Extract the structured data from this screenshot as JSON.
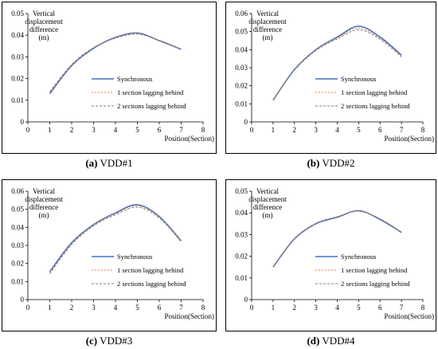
{
  "chart_data": [
    {
      "type": "line",
      "caption_letter": "(a)",
      "caption_name": "VDD#1",
      "ylabel_lines": [
        "Vertical",
        "displacement",
        "difference",
        "(m)"
      ],
      "xlabel": "Position(Section)",
      "xlim": [
        0,
        8
      ],
      "ylim": [
        0,
        0.05
      ],
      "xticks": [
        "0",
        "1",
        "2",
        "3",
        "4",
        "5",
        "6",
        "7",
        "8"
      ],
      "yticks": [
        "0",
        "0.01",
        "0.02",
        "0.03",
        "0.04",
        "0.05"
      ],
      "series": [
        {
          "name": "Synchronous",
          "color": "#4472c4",
          "style": "solid",
          "x": [
            1,
            2,
            3,
            4,
            5,
            6,
            7
          ],
          "y": [
            0.013,
            0.026,
            0.034,
            0.039,
            0.041,
            0.0375,
            0.0335
          ]
        },
        {
          "name": "1 section lagging behind",
          "color": "#ed7d31",
          "style": "dotted",
          "x": [
            1,
            2,
            3,
            4,
            5,
            6,
            7
          ],
          "y": [
            0.0135,
            0.0262,
            0.0342,
            0.0388,
            0.0408,
            0.0376,
            0.0335
          ]
        },
        {
          "name": "2 sections lagging behind",
          "color": "#7f7f7f",
          "style": "dashed",
          "x": [
            1,
            2,
            3,
            4,
            5,
            6,
            7
          ],
          "y": [
            0.014,
            0.0265,
            0.0343,
            0.0386,
            0.0405,
            0.0377,
            0.0336
          ]
        }
      ]
    },
    {
      "type": "line",
      "caption_letter": "(b)",
      "caption_name": "VDD#2",
      "ylabel_lines": [
        "Vertical",
        "displacement",
        "difference",
        "(m)"
      ],
      "xlabel": "Position(Section)",
      "xlim": [
        0,
        8
      ],
      "ylim": [
        0,
        0.06
      ],
      "xticks": [
        "0",
        "1",
        "2",
        "3",
        "4",
        "5",
        "6",
        "7",
        "8"
      ],
      "yticks": [
        "0",
        "0.01",
        "0.02",
        "0.03",
        "0.04",
        "0.05",
        "0.06"
      ],
      "series": [
        {
          "name": "Synchronous",
          "color": "#4472c4",
          "style": "solid",
          "x": [
            1,
            2,
            3,
            4,
            5,
            6,
            7
          ],
          "y": [
            0.012,
            0.029,
            0.04,
            0.047,
            0.053,
            0.047,
            0.037
          ]
        },
        {
          "name": "1 section lagging behind",
          "color": "#ed7d31",
          "style": "dotted",
          "x": [
            1,
            2,
            3,
            4,
            5,
            6,
            7
          ],
          "y": [
            0.012,
            0.0288,
            0.0398,
            0.0465,
            0.052,
            0.0463,
            0.0365
          ]
        },
        {
          "name": "2 sections lagging behind",
          "color": "#7f7f7f",
          "style": "dashed",
          "x": [
            1,
            2,
            3,
            4,
            5,
            6,
            7
          ],
          "y": [
            0.0122,
            0.0286,
            0.0395,
            0.046,
            0.051,
            0.0458,
            0.036
          ]
        }
      ]
    },
    {
      "type": "line",
      "caption_letter": "(c)",
      "caption_name": "VDD#3",
      "ylabel_lines": [
        "Vertical",
        "displacement",
        "difference",
        "(m)"
      ],
      "xlabel": "Position(Section)",
      "xlim": [
        0,
        8
      ],
      "ylim": [
        0,
        0.06
      ],
      "xticks": [
        "0",
        "1",
        "2",
        "3",
        "4",
        "5",
        "6",
        "7",
        "8"
      ],
      "yticks": [
        "0",
        "0.01",
        "0.02",
        "0.03",
        "0.04",
        "0.05",
        "0.06"
      ],
      "series": [
        {
          "name": "Synchronous",
          "color": "#4472c4",
          "style": "solid",
          "x": [
            1,
            2,
            3,
            4,
            5,
            6,
            7
          ],
          "y": [
            0.0155,
            0.0315,
            0.0415,
            0.048,
            0.0525,
            0.046,
            0.0325
          ]
        },
        {
          "name": "1 section lagging behind",
          "color": "#ed7d31",
          "style": "dotted",
          "x": [
            1,
            2,
            3,
            4,
            5,
            6,
            7
          ],
          "y": [
            0.015,
            0.031,
            0.0412,
            0.0476,
            0.052,
            0.0457,
            0.0323
          ]
        },
        {
          "name": "2 sections lagging behind",
          "color": "#7f7f7f",
          "style": "dashed",
          "x": [
            1,
            2,
            3,
            4,
            5,
            6,
            7
          ],
          "y": [
            0.0143,
            0.0305,
            0.0408,
            0.047,
            0.0512,
            0.0452,
            0.032
          ]
        }
      ]
    },
    {
      "type": "line",
      "caption_letter": "(d)",
      "caption_name": "VDD#4",
      "ylabel_lines": [
        "Vertical",
        "displacement",
        "difference",
        "(m)"
      ],
      "xlabel": "Position(Section)",
      "xlim": [
        0,
        8
      ],
      "ylim": [
        0,
        0.05
      ],
      "xticks": [
        "0",
        "1",
        "2",
        "3",
        "4",
        "5",
        "6",
        "7",
        "8"
      ],
      "yticks": [
        "0",
        "0.01",
        "0.02",
        "0.03",
        "0.04",
        "0.05"
      ],
      "series": [
        {
          "name": "Synchronous",
          "color": "#4472c4",
          "style": "solid",
          "x": [
            1,
            2,
            3,
            4,
            5,
            6,
            7
          ],
          "y": [
            0.015,
            0.028,
            0.035,
            0.038,
            0.041,
            0.037,
            0.031
          ]
        },
        {
          "name": "1 section lagging behind",
          "color": "#ed7d31",
          "style": "dotted",
          "x": [
            1,
            2,
            3,
            4,
            5,
            6,
            7
          ],
          "y": [
            0.015,
            0.0281,
            0.0351,
            0.0382,
            0.0409,
            0.0372,
            0.0311
          ]
        },
        {
          "name": "2 sections lagging behind",
          "color": "#7f7f7f",
          "style": "dashed",
          "x": [
            1,
            2,
            3,
            4,
            5,
            6,
            7
          ],
          "y": [
            0.0151,
            0.0282,
            0.0352,
            0.0383,
            0.0408,
            0.0373,
            0.0312
          ]
        }
      ]
    }
  ]
}
